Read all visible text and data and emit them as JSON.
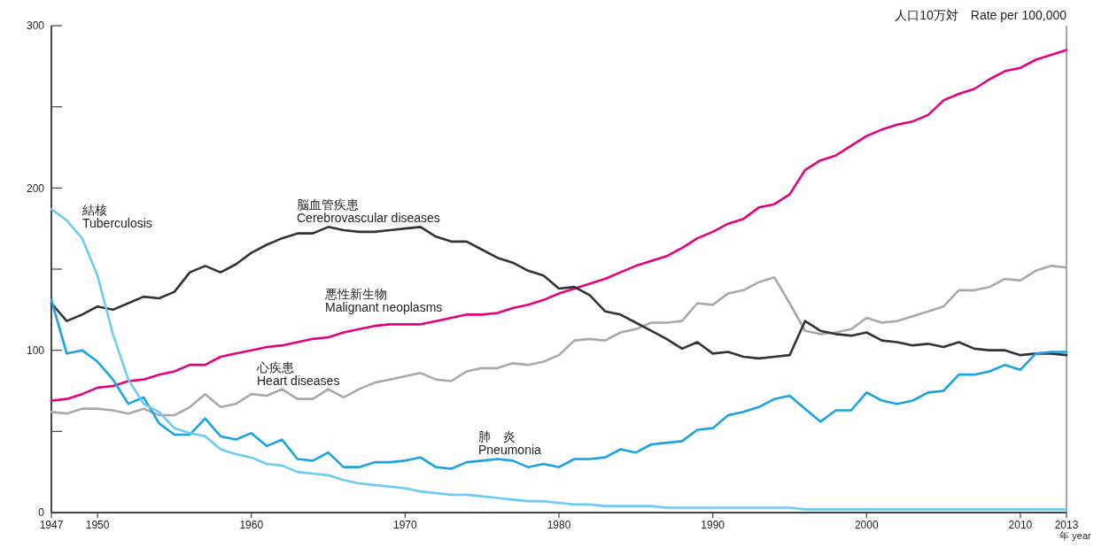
{
  "chart_data": {
    "type": "line",
    "ylabel": "人口10万対　Rate per 100,000",
    "xlabel": "年 year",
    "x": [
      1947,
      1948,
      1949,
      1950,
      1951,
      1952,
      1953,
      1954,
      1955,
      1956,
      1957,
      1958,
      1959,
      1960,
      1961,
      1962,
      1963,
      1964,
      1965,
      1966,
      1967,
      1968,
      1969,
      1970,
      1971,
      1972,
      1973,
      1974,
      1975,
      1976,
      1977,
      1978,
      1979,
      1980,
      1981,
      1982,
      1983,
      1984,
      1985,
      1986,
      1987,
      1988,
      1989,
      1990,
      1991,
      1992,
      1993,
      1994,
      1995,
      1996,
      1997,
      1998,
      1999,
      2000,
      2001,
      2002,
      2003,
      2004,
      2005,
      2006,
      2007,
      2008,
      2009,
      2010,
      2011,
      2012,
      2013
    ],
    "series": [
      {
        "name": "悪性新生物\nMalignant neoplasms",
        "color": "#e6007e",
        "values": [
          69,
          70,
          73,
          77,
          78,
          81,
          82,
          85,
          87,
          91,
          91,
          96,
          98,
          100,
          102,
          103,
          105,
          107,
          108,
          111,
          113,
          115,
          116,
          116,
          116,
          118,
          120,
          122,
          122,
          123,
          126,
          128,
          131,
          135,
          138,
          141,
          144,
          148,
          152,
          155,
          158,
          163,
          169,
          173,
          178,
          181,
          188,
          190,
          196,
          211,
          217,
          220,
          226,
          232,
          236,
          239,
          241,
          245,
          254,
          258,
          261,
          267,
          272,
          274,
          279,
          282,
          285
        ]
      },
      {
        "name": "心疾患\nHeart diseases",
        "color": "#a7a9ac",
        "values": [
          62,
          61,
          64,
          64,
          63,
          61,
          64,
          60,
          60,
          65,
          73,
          65,
          67,
          73,
          72,
          76,
          70,
          70,
          76,
          71,
          76,
          80,
          82,
          84,
          86,
          82,
          81,
          87,
          89,
          89,
          92,
          91,
          93,
          97,
          106,
          107,
          106,
          111,
          113,
          117,
          117,
          118,
          129,
          128,
          135,
          137,
          142,
          145,
          129,
          112,
          110,
          111,
          113,
          120,
          117,
          118,
          121,
          124,
          127,
          137,
          137,
          139,
          144,
          143,
          149,
          152,
          151
        ]
      },
      {
        "name": "脳血管疾患\nCerebrovascular diseases",
        "color": "#333333",
        "values": [
          129,
          118,
          122,
          127,
          125,
          129,
          133,
          132,
          136,
          148,
          152,
          148,
          153,
          160,
          165,
          169,
          172,
          172,
          176,
          174,
          173,
          173,
          174,
          175,
          176,
          170,
          167,
          167,
          162,
          157,
          154,
          149,
          146,
          138,
          139,
          134,
          124,
          122,
          117,
          112,
          107,
          101,
          105,
          98,
          99,
          96,
          95,
          96,
          97,
          118,
          112,
          110,
          109,
          111,
          106,
          105,
          103,
          104,
          102,
          105,
          101,
          100,
          100,
          97,
          98,
          98,
          97
        ]
      },
      {
        "name": "肺　炎\nPneumonia",
        "color": "#1aa3e0",
        "values": [
          131,
          98,
          100,
          93,
          82,
          67,
          71,
          55,
          48,
          48,
          58,
          47,
          45,
          49,
          41,
          45,
          33,
          32,
          37,
          28,
          28,
          31,
          31,
          32,
          34,
          28,
          27,
          31,
          32,
          33,
          32,
          28,
          30,
          28,
          33,
          33,
          34,
          39,
          37,
          42,
          43,
          44,
          51,
          52,
          60,
          62,
          65,
          70,
          72,
          64,
          56,
          63,
          63,
          74,
          69,
          67,
          69,
          74,
          75,
          85,
          85,
          87,
          91,
          88,
          98,
          99,
          99
        ]
      },
      {
        "name": "結核\nTuberculosis",
        "color": "#6ccbf2",
        "values": [
          187,
          180,
          169,
          146,
          110,
          82,
          67,
          62,
          52,
          49,
          47,
          39,
          36,
          34,
          30,
          29,
          25,
          24,
          23,
          20,
          18,
          17,
          16,
          15,
          13,
          12,
          11,
          11,
          10,
          9,
          8,
          7,
          7,
          6,
          5,
          5,
          4,
          4,
          4,
          4,
          3,
          3,
          3,
          3,
          3,
          3,
          3,
          3,
          3,
          2,
          2,
          2,
          2,
          2,
          2,
          2,
          2,
          2,
          2,
          2,
          2,
          2,
          2,
          2,
          2,
          2,
          2
        ]
      }
    ],
    "xlim": [
      1947,
      2013
    ],
    "xticks": [
      1947,
      1950,
      1960,
      1970,
      1980,
      1990,
      2000,
      2010,
      2013
    ],
    "ylim": [
      0,
      300
    ],
    "yticks": [
      0,
      {
        "value": 50,
        "label": null
      },
      100,
      {
        "value": 150,
        "label": null
      },
      200,
      {
        "value": 250,
        "label": null
      },
      300
    ],
    "grid": false,
    "legend": false,
    "marker": "none",
    "line_style": "solid"
  }
}
